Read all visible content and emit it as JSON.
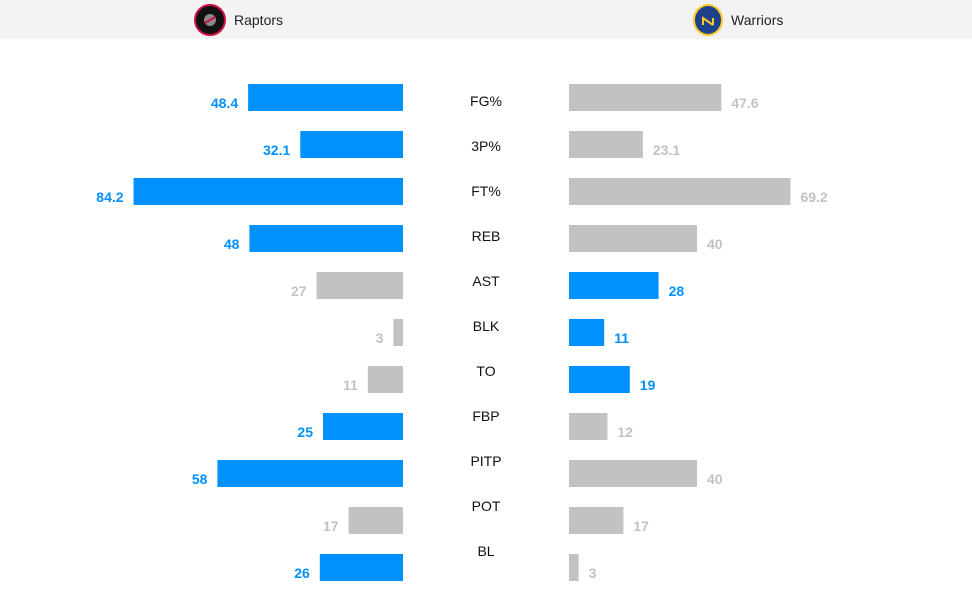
{
  "header": {
    "home": "Raptors",
    "away": "Warriors"
  },
  "colors": {
    "highlight": "#0091ff",
    "neutral": "#c2c2c2",
    "label": "#111111"
  },
  "chart_data": {
    "type": "bar",
    "orientation": "horizontal-diverging",
    "categories": [
      "FG%",
      "3P%",
      "FT%",
      "REB",
      "AST",
      "BLK",
      "TO",
      "FBP",
      "PITP",
      "POT",
      "BL"
    ],
    "series": [
      {
        "name": "Raptors",
        "values": [
          48.4,
          32.1,
          84.2,
          48,
          27,
          3,
          11,
          25,
          58,
          17,
          26
        ],
        "labels": [
          "48.4",
          "32.1",
          "84.2",
          "48",
          "27",
          "3",
          "11",
          "25",
          "58",
          "17",
          "26"
        ],
        "highlighted": [
          true,
          true,
          true,
          true,
          false,
          false,
          false,
          true,
          true,
          false,
          true
        ]
      },
      {
        "name": "Warriors",
        "values": [
          47.6,
          23.1,
          69.2,
          40,
          28,
          11,
          19,
          12,
          40,
          17,
          3
        ],
        "labels": [
          "47.6",
          "23.1",
          "69.2",
          "40",
          "28",
          "11",
          "19",
          "12",
          "40",
          "17",
          "3"
        ],
        "highlighted": [
          false,
          false,
          false,
          false,
          true,
          true,
          true,
          false,
          false,
          false,
          false
        ]
      }
    ],
    "grid": false
  }
}
